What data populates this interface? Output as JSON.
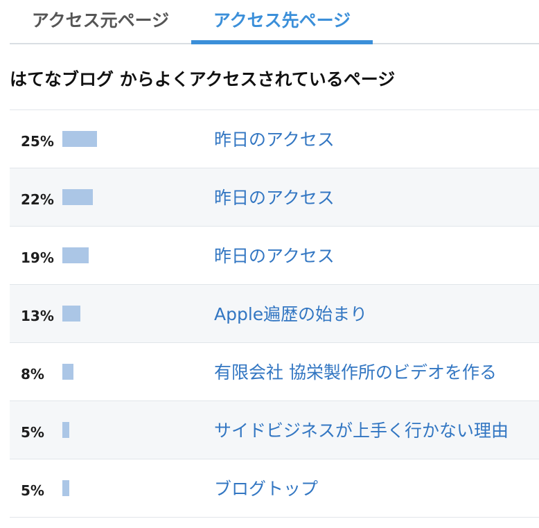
{
  "tabs": {
    "source_label": "アクセス元ページ",
    "destination_label": "アクセス先ページ",
    "active": "destination"
  },
  "section": {
    "title": "はてなブログ からよくアクセスされているページ"
  },
  "rows": [
    {
      "percent_label": "25%",
      "value": 25,
      "page_title": "昨日のアクセス"
    },
    {
      "percent_label": "22%",
      "value": 22,
      "page_title": "昨日のアクセス"
    },
    {
      "percent_label": "19%",
      "value": 19,
      "page_title": "昨日のアクセス"
    },
    {
      "percent_label": "13%",
      "value": 13,
      "page_title": "Apple遍歴の始まり"
    },
    {
      "percent_label": "8%",
      "value": 8,
      "page_title": "有限会社 協栄製作所のビデオを作る"
    },
    {
      "percent_label": "5%",
      "value": 5,
      "page_title": "サイドビジネスが上手く行かない理由"
    },
    {
      "percent_label": "5%",
      "value": 5,
      "page_title": "ブログトップ"
    }
  ],
  "colors": {
    "accent": "#3b8fd9",
    "link": "#3276c2",
    "bar": "#abc6e6",
    "row_alt": "#f5f7f9"
  }
}
